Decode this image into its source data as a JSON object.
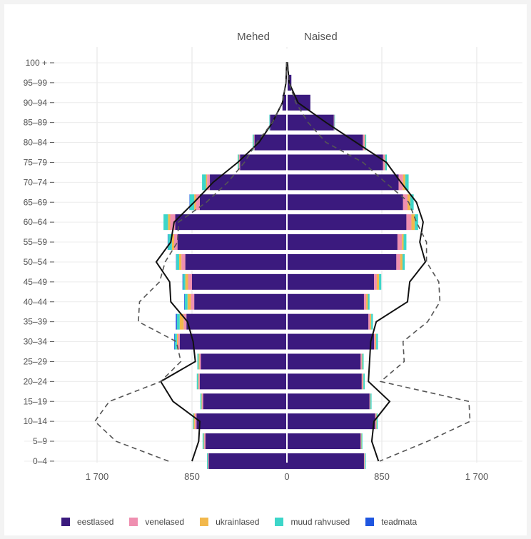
{
  "chart_data": {
    "type": "bar",
    "subtype": "population-pyramid",
    "side_labels": {
      "left": "Mehed",
      "right": "Naised"
    },
    "categories": [
      "0–4",
      "5–9",
      "10–14",
      "15–19",
      "20–24",
      "25–29",
      "30–34",
      "35–39",
      "40–44",
      "45–49",
      "50–54",
      "55–59",
      "60–64",
      "65–69",
      "70–74",
      "75–79",
      "80–84",
      "85–89",
      "90–94",
      "95–99",
      "100 +"
    ],
    "xlim": [
      -1700,
      1700
    ],
    "x_ticks": [
      {
        "value": -1700,
        "label": "1 700"
      },
      {
        "value": -850,
        "label": "850"
      },
      {
        "value": 0,
        "label": "0"
      },
      {
        "value": 850,
        "label": "850"
      },
      {
        "value": 1700,
        "label": "1 700"
      }
    ],
    "series": [
      {
        "name": "eestlased",
        "color": "#3b1a7e",
        "male": [
          700,
          730,
          810,
          750,
          780,
          770,
          960,
          900,
          830,
          850,
          910,
          980,
          1000,
          780,
          690,
          420,
          290,
          150,
          40,
          5,
          2
        ],
        "female": [
          690,
          660,
          790,
          740,
          670,
          660,
          780,
          730,
          690,
          780,
          980,
          990,
          1070,
          1040,
          1000,
          860,
          680,
          420,
          210,
          40,
          5
        ]
      },
      {
        "name": "venelased",
        "color": "#ef8fb0",
        "male": [
          5,
          10,
          15,
          10,
          10,
          12,
          15,
          25,
          30,
          35,
          35,
          30,
          45,
          35,
          25,
          8,
          5,
          2,
          0,
          0,
          0
        ],
        "female": [
          5,
          5,
          8,
          5,
          10,
          10,
          12,
          15,
          20,
          25,
          35,
          40,
          45,
          40,
          40,
          15,
          15,
          5,
          0,
          0,
          0
        ]
      },
      {
        "name": "ukrainlased",
        "color": "#f2b84c",
        "male": [
          3,
          5,
          10,
          5,
          5,
          8,
          10,
          35,
          30,
          25,
          20,
          20,
          20,
          15,
          10,
          3,
          2,
          0,
          0,
          0,
          0
        ],
        "female": [
          3,
          3,
          5,
          3,
          5,
          5,
          8,
          10,
          15,
          20,
          20,
          15,
          30,
          25,
          20,
          5,
          5,
          0,
          0,
          0,
          0
        ]
      },
      {
        "name": "muud rahvused",
        "color": "#3dd6c9",
        "male": [
          8,
          10,
          8,
          10,
          12,
          12,
          20,
          25,
          25,
          20,
          25,
          35,
          40,
          40,
          35,
          10,
          10,
          5,
          0,
          0,
          0
        ],
        "female": [
          8,
          8,
          10,
          10,
          12,
          12,
          15,
          15,
          15,
          20,
          20,
          25,
          30,
          30,
          30,
          15,
          10,
          5,
          0,
          0,
          0
        ]
      },
      {
        "name": "teadmata",
        "color": "#1f56e0",
        "male": [
          0,
          0,
          0,
          0,
          0,
          0,
          5,
          10,
          5,
          5,
          3,
          3,
          0,
          3,
          0,
          0,
          0,
          0,
          0,
          0,
          0
        ],
        "female": [
          0,
          0,
          0,
          0,
          0,
          0,
          0,
          0,
          0,
          0,
          0,
          0,
          0,
          0,
          0,
          0,
          0,
          0,
          0,
          0,
          0
        ]
      }
    ],
    "overlay_lines": [
      {
        "style": "solid",
        "color": "#111111",
        "male": [
          850,
          790,
          780,
          1020,
          1130,
          820,
          840,
          890,
          1040,
          1050,
          1170,
          1040,
          1010,
          830,
          660,
          440,
          250,
          130,
          40,
          8,
          2
        ],
        "female": [
          820,
          760,
          780,
          920,
          730,
          740,
          750,
          800,
          1080,
          1100,
          1240,
          1190,
          1220,
          1160,
          1020,
          890,
          620,
          350,
          100,
          20,
          5
        ]
      },
      {
        "style": "dashed",
        "color": "#555555",
        "male": [
          1060,
          1530,
          1720,
          1590,
          1130,
          950,
          990,
          1330,
          1320,
          1140,
          1090,
          980,
          970,
          720,
          530,
          380,
          270,
          130,
          40,
          8,
          2
        ],
        "female": [
          830,
          1260,
          1640,
          1630,
          840,
          1050,
          1040,
          1260,
          1370,
          1360,
          1250,
          1250,
          1160,
          1090,
          880,
          680,
          350,
          190,
          80,
          20,
          5
        ]
      }
    ],
    "grid": true,
    "legend_position": "bottom"
  }
}
